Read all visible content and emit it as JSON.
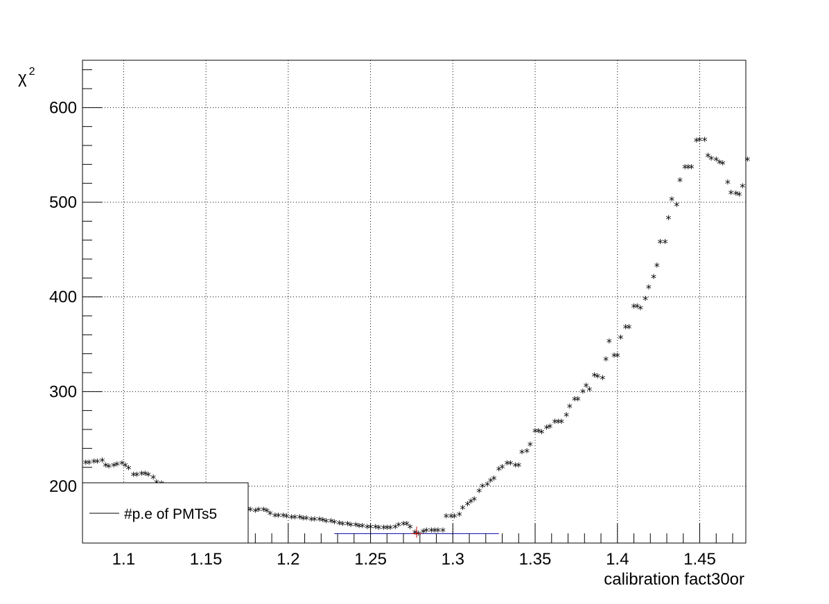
{
  "chart_data": {
    "type": "scatter",
    "title": "",
    "xlabel": "calibration fact30or",
    "ylabel": "χ",
    "ylabel_sup": "2",
    "xlim": [
      1.075,
      1.478
    ],
    "ylim": [
      140,
      650
    ],
    "grid": true,
    "x_ticks": [
      1.1,
      1.15,
      1.2,
      1.25,
      1.3,
      1.35,
      1.4,
      1.45
    ],
    "x_tick_labels": [
      "1.1",
      "1.15",
      "1.2",
      "1.25",
      "1.3",
      "1.35",
      "1.4",
      "1.45"
    ],
    "y_ticks": [
      200,
      300,
      400,
      500,
      600
    ],
    "y_tick_labels": [
      "200",
      "300",
      "400",
      "500",
      "600"
    ],
    "marker_symbol": "*",
    "legend": {
      "placement": "bottom-left",
      "entries": [
        {
          "label": "#p.e of PMTs5",
          "color": "#000000"
        }
      ]
    },
    "series": [
      {
        "name": "#p.e of PMTs5",
        "color": "#000000",
        "points": [
          [
            1.077,
            225
          ],
          [
            1.079,
            225
          ],
          [
            1.082,
            226
          ],
          [
            1.084,
            226
          ],
          [
            1.087,
            227
          ],
          [
            1.089,
            222
          ],
          [
            1.091,
            221
          ],
          [
            1.094,
            222
          ],
          [
            1.096,
            223
          ],
          [
            1.099,
            224
          ],
          [
            1.101,
            222
          ],
          [
            1.103,
            219
          ],
          [
            1.106,
            212
          ],
          [
            1.108,
            212
          ],
          [
            1.111,
            213
          ],
          [
            1.113,
            213
          ],
          [
            1.115,
            212
          ],
          [
            1.118,
            209
          ],
          [
            1.12,
            204
          ],
          [
            1.123,
            203
          ],
          [
            1.125,
            200
          ],
          [
            1.128,
            198
          ],
          [
            1.13,
            196
          ],
          [
            1.133,
            194
          ],
          [
            1.135,
            192
          ],
          [
            1.138,
            190
          ],
          [
            1.14,
            189
          ],
          [
            1.143,
            188
          ],
          [
            1.145,
            187
          ],
          [
            1.148,
            186
          ],
          [
            1.15,
            185
          ],
          [
            1.153,
            184
          ],
          [
            1.155,
            183
          ],
          [
            1.158,
            182
          ],
          [
            1.16,
            181
          ],
          [
            1.163,
            180
          ],
          [
            1.165,
            179
          ],
          [
            1.168,
            178
          ],
          [
            1.17,
            177
          ],
          [
            1.173,
            176
          ],
          [
            1.175,
            176
          ],
          [
            1.177,
            175
          ],
          [
            1.18,
            174
          ],
          [
            1.182,
            175
          ],
          [
            1.185,
            175
          ],
          [
            1.187,
            174
          ],
          [
            1.189,
            171
          ],
          [
            1.192,
            169
          ],
          [
            1.194,
            169
          ],
          [
            1.197,
            169
          ],
          [
            1.199,
            168
          ],
          [
            1.202,
            167
          ],
          [
            1.204,
            167
          ],
          [
            1.207,
            167
          ],
          [
            1.209,
            166
          ],
          [
            1.211,
            166
          ],
          [
            1.214,
            165
          ],
          [
            1.216,
            165
          ],
          [
            1.219,
            165
          ],
          [
            1.221,
            164
          ],
          [
            1.223,
            163
          ],
          [
            1.226,
            163
          ],
          [
            1.228,
            162
          ],
          [
            1.231,
            161
          ],
          [
            1.233,
            160
          ],
          [
            1.236,
            160
          ],
          [
            1.238,
            159
          ],
          [
            1.241,
            159
          ],
          [
            1.243,
            158
          ],
          [
            1.245,
            158
          ],
          [
            1.248,
            157
          ],
          [
            1.25,
            157
          ],
          [
            1.253,
            157
          ],
          [
            1.255,
            156
          ],
          [
            1.258,
            156
          ],
          [
            1.26,
            156
          ],
          [
            1.262,
            156
          ],
          [
            1.265,
            157
          ],
          [
            1.267,
            159
          ],
          [
            1.27,
            160
          ],
          [
            1.272,
            160
          ],
          [
            1.274,
            157
          ],
          [
            1.277,
            151
          ],
          [
            1.279,
            150
          ],
          [
            1.282,
            152
          ],
          [
            1.284,
            153
          ],
          [
            1.287,
            153
          ],
          [
            1.289,
            153
          ],
          [
            1.291,
            153
          ],
          [
            1.294,
            153
          ],
          [
            1.296,
            168
          ],
          [
            1.299,
            168
          ],
          [
            1.301,
            168
          ],
          [
            1.304,
            170
          ],
          [
            1.306,
            177
          ],
          [
            1.309,
            181
          ],
          [
            1.311,
            184
          ],
          [
            1.313,
            186
          ],
          [
            1.316,
            195
          ],
          [
            1.318,
            200
          ],
          [
            1.321,
            202
          ],
          [
            1.323,
            206
          ],
          [
            1.325,
            208
          ],
          [
            1.328,
            218
          ],
          [
            1.33,
            220
          ],
          [
            1.333,
            224
          ],
          [
            1.335,
            224
          ],
          [
            1.338,
            222
          ],
          [
            1.34,
            222
          ],
          [
            1.342,
            236
          ],
          [
            1.345,
            237
          ],
          [
            1.347,
            244
          ],
          [
            1.35,
            258
          ],
          [
            1.352,
            258
          ],
          [
            1.354,
            257
          ],
          [
            1.357,
            262
          ],
          [
            1.359,
            263
          ],
          [
            1.362,
            268
          ],
          [
            1.364,
            268
          ],
          [
            1.366,
            268
          ],
          [
            1.369,
            275
          ],
          [
            1.371,
            284
          ],
          [
            1.374,
            292
          ],
          [
            1.376,
            292
          ],
          [
            1.379,
            300
          ],
          [
            1.381,
            306
          ],
          [
            1.383,
            302
          ],
          [
            1.386,
            317
          ],
          [
            1.388,
            316
          ],
          [
            1.391,
            314
          ],
          [
            1.393,
            334
          ],
          [
            1.395,
            353
          ],
          [
            1.398,
            338
          ],
          [
            1.4,
            338
          ],
          [
            1.402,
            357
          ],
          [
            1.405,
            368
          ],
          [
            1.407,
            368
          ],
          [
            1.41,
            390
          ],
          [
            1.412,
            390
          ],
          [
            1.414,
            388
          ],
          [
            1.417,
            398
          ],
          [
            1.419,
            410
          ],
          [
            1.422,
            421
          ],
          [
            1.424,
            433
          ],
          [
            1.426,
            458
          ],
          [
            1.429,
            458
          ],
          [
            1.431,
            483
          ],
          [
            1.433,
            503
          ],
          [
            1.436,
            497
          ],
          [
            1.438,
            523
          ],
          [
            1.441,
            537
          ],
          [
            1.443,
            537
          ],
          [
            1.445,
            537
          ],
          [
            1.448,
            565
          ],
          [
            1.45,
            566
          ],
          [
            1.453,
            566
          ],
          [
            1.455,
            549
          ],
          [
            1.457,
            546
          ],
          [
            1.46,
            545
          ],
          [
            1.462,
            542
          ],
          [
            1.464,
            541
          ],
          [
            1.467,
            521
          ],
          [
            1.469,
            510
          ],
          [
            1.472,
            509
          ],
          [
            1.474,
            508
          ],
          [
            1.476,
            517
          ],
          [
            1.479,
            545
          ]
        ]
      }
    ],
    "minimum_marker": {
      "x": 1.278,
      "y": 150,
      "x_err": 0.05,
      "color": "#0000aa",
      "crosshair_color": "#cc0000"
    }
  }
}
